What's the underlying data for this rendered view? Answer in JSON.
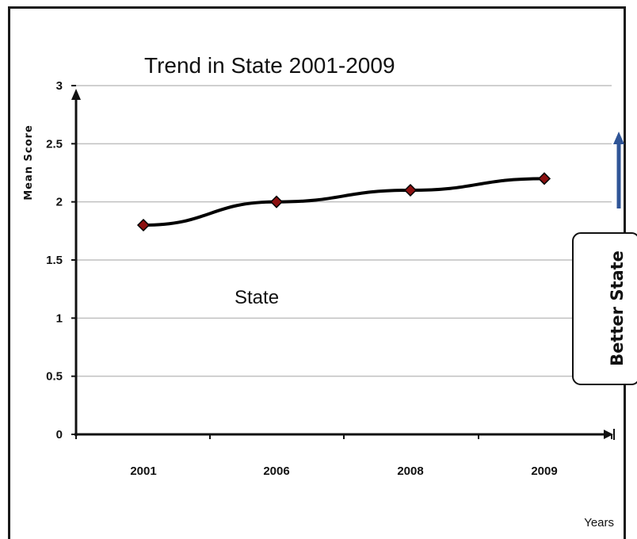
{
  "chart_data": {
    "type": "line",
    "title": "Trend in State 2001-2009",
    "xlabel": "Years",
    "ylabel": "Mean Score",
    "categories": [
      "2001",
      "2006",
      "2008",
      "2009"
    ],
    "series": [
      {
        "name": "State",
        "values": [
          1.8,
          2.0,
          2.1,
          2.2
        ]
      }
    ],
    "ylim": [
      0,
      3
    ],
    "yticks": [
      "0",
      "0.5",
      "1",
      "1.5",
      "2",
      "2.5",
      "3"
    ],
    "grid": true,
    "annotation": "Better State",
    "colors": {
      "line": "#000000",
      "marker": "#8b1010",
      "grid": "#c0c0c0",
      "arrow": "#2f5597"
    }
  }
}
